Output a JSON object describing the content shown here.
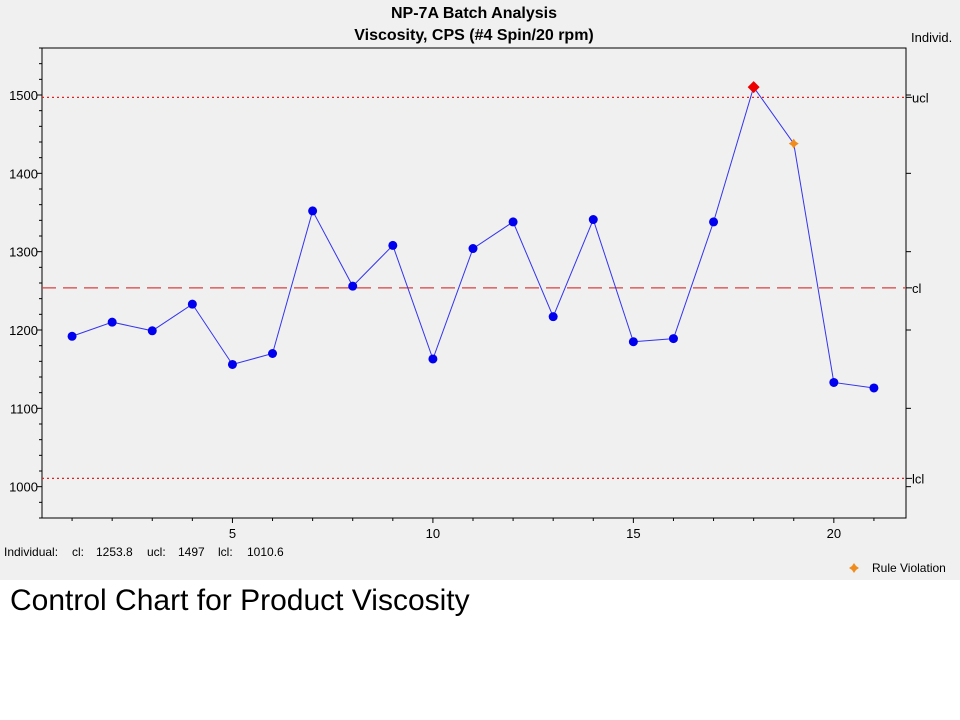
{
  "caption": "Control Chart for Product Viscosity",
  "chart_data": {
    "type": "line",
    "title": "NP-7A Batch Analysis",
    "subtitle": "Viscosity, CPS (#4 Spin/20 rpm)",
    "chart_label": "Individ.",
    "xlim": [
      0.25,
      21.8
    ],
    "ylim": [
      960,
      1560
    ],
    "x_ticks": [
      5,
      10,
      15,
      20
    ],
    "y_ticks": [
      1000,
      1100,
      1200,
      1300,
      1400,
      1500
    ],
    "x": [
      1,
      2,
      3,
      4,
      5,
      6,
      7,
      8,
      9,
      10,
      11,
      12,
      13,
      14,
      15,
      16,
      17,
      18,
      19,
      20,
      21
    ],
    "series": [
      {
        "values": [
          1192,
          1210,
          1199,
          1233,
          1156,
          1170,
          1352,
          1256,
          1308,
          1163,
          1304,
          1338,
          1217,
          1341,
          1185,
          1189,
          1338,
          1510,
          1438,
          1133,
          1126
        ]
      }
    ],
    "point_status": [
      "normal",
      "normal",
      "normal",
      "normal",
      "normal",
      "normal",
      "normal",
      "normal",
      "normal",
      "normal",
      "normal",
      "normal",
      "normal",
      "normal",
      "normal",
      "normal",
      "normal",
      "out_of_control",
      "rule_violation",
      "normal",
      "normal"
    ],
    "control_limits": {
      "cl": 1253.8,
      "ucl": 1497,
      "lcl": 1010.6,
      "cl_label": "cl",
      "ucl_label": "ucl",
      "lcl_label": "lcl"
    },
    "summary": {
      "prefix": "Individual:",
      "cl_label": "cl:",
      "cl_value": "1253.8",
      "ucl_label": "ucl:",
      "ucl_value": "1497",
      "lcl_label": "lcl:",
      "lcl_value": "1010.6"
    },
    "legend": {
      "label": "Rule Violation",
      "position": "bottom-right"
    },
    "colors": {
      "line": "#3333ee",
      "marker": "#0000ee",
      "out_of_control": "#ee0000",
      "rule_violation": "#f08c1e",
      "center_line": "#d84040",
      "limit_line": "#dd2222",
      "panel_background": "#f0f0f0"
    },
    "grid": false
  }
}
